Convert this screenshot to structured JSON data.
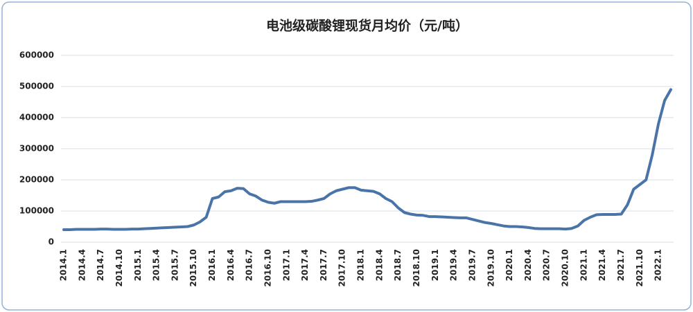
{
  "chart_data": {
    "type": "line",
    "title": "电池级碳酸锂现货月均价（元/吨）",
    "categories": [
      "2014.1",
      null,
      null,
      "2014.4",
      null,
      null,
      "2014.7",
      null,
      null,
      "2014.10",
      null,
      null,
      "2015.1",
      null,
      null,
      "2015.4",
      null,
      null,
      "2015.7",
      null,
      null,
      "2015.10",
      null,
      null,
      "2016.1",
      null,
      null,
      "2016.4",
      null,
      null,
      "2016.7",
      null,
      null,
      "2016.10",
      null,
      null,
      "2017.1",
      null,
      null,
      "2017.4",
      null,
      null,
      "2017.7",
      null,
      null,
      "2017.10",
      null,
      null,
      "2018.1",
      null,
      null,
      "2018.4",
      null,
      null,
      "2018.7",
      null,
      null,
      "2018.10",
      null,
      null,
      "2019.1",
      null,
      null,
      "2019.4",
      null,
      null,
      "2019.7",
      null,
      null,
      "2019.10",
      null,
      null,
      "2020.1",
      null,
      null,
      "2020.4",
      null,
      null,
      "2020.7",
      null,
      null,
      "2020.10",
      null,
      null,
      "2021.1",
      null,
      null,
      "2021.4",
      null,
      null,
      "2021.7",
      null,
      null,
      "2021.10",
      null,
      null,
      "2022.1",
      null,
      null
    ],
    "series": [
      {
        "color": "#4a74a8",
        "values": [
          40000,
          40000,
          41000,
          41000,
          41000,
          41000,
          42000,
          42000,
          41000,
          41000,
          41000,
          42000,
          42000,
          43000,
          44000,
          45000,
          46000,
          47000,
          48000,
          49000,
          50000,
          55000,
          65000,
          80000,
          140000,
          145000,
          162000,
          165000,
          173000,
          172000,
          155000,
          148000,
          135000,
          128000,
          125000,
          130000,
          130000,
          130000,
          130000,
          130000,
          131000,
          135000,
          140000,
          155000,
          165000,
          170000,
          175000,
          175000,
          167000,
          165000,
          163000,
          155000,
          140000,
          130000,
          110000,
          95000,
          90000,
          87000,
          86000,
          82000,
          82000,
          81000,
          80000,
          79000,
          78000,
          78000,
          73000,
          68000,
          63000,
          60000,
          56000,
          52000,
          50000,
          50000,
          49000,
          47000,
          44000,
          43000,
          43000,
          43000,
          43000,
          42000,
          44000,
          52000,
          70000,
          80000,
          88000,
          89000,
          89000,
          89000,
          90000,
          120000,
          170000,
          185000,
          200000,
          280000,
          380000,
          455000,
          490000
        ]
      }
    ],
    "ylim": [
      0,
      600000
    ],
    "yticks": [
      0,
      100000,
      200000,
      300000,
      400000,
      500000,
      600000
    ],
    "grid": true
  }
}
